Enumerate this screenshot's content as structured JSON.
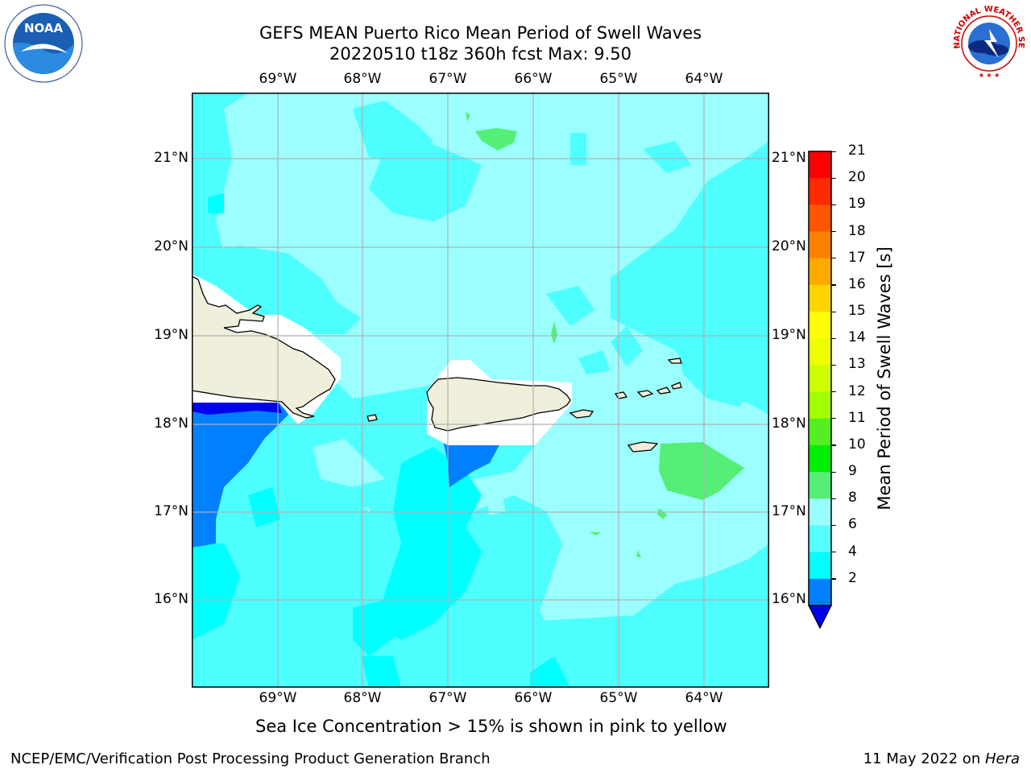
{
  "title_line1": "GEFS MEAN Puerto Rico Mean Period of Swell Waves",
  "title_line2": "20220510 t18z 360h fcst   Max: 9.50",
  "note": "Sea Ice Concentration > 15% is shown in pink to yellow",
  "footer_left": "NCEP/EMC/Verification Post Processing Product Generation Branch",
  "footer_right_prefix": "11 May 2022 on ",
  "footer_right_italic": "Hera",
  "longitudes": [
    "69°W",
    "68°W",
    "67°W",
    "66°W",
    "65°W",
    "64°W"
  ],
  "latitudes": [
    "21°N",
    "20°N",
    "19°N",
    "18°N",
    "17°N",
    "16°N"
  ],
  "colorbar": {
    "label": "Mean Period of Swell Waves [s]",
    "ticks": [
      "21",
      "20",
      "19",
      "18",
      "17",
      "16",
      "15",
      "14",
      "13",
      "12",
      "11",
      "10",
      "9",
      "8",
      "6",
      "4",
      "2"
    ],
    "colors": [
      "#ff0000",
      "#ff2a00",
      "#ff5500",
      "#ff8000",
      "#ffaa00",
      "#ffd400",
      "#ffff00",
      "#eeff00",
      "#ccff00",
      "#a0ff00",
      "#55ee22",
      "#00ee00",
      "#55ee77",
      "#99ffff",
      "#55ffff",
      "#00ffff",
      "#0080ff",
      "#0000ee"
    ],
    "extend_color": "#0000ee"
  },
  "field_colors": {
    "c4_6": "#00ffff",
    "c6_8": "#4dffff",
    "c8_9": "#9bffff",
    "c9_10": "#55ee77",
    "c2_4": "#0080ff",
    "c_lt2": "#0000ee",
    "land": "#efefdc"
  },
  "logos": {
    "noaa": "NOAA",
    "nws": "NATIONAL WEATHER SERVICE"
  }
}
